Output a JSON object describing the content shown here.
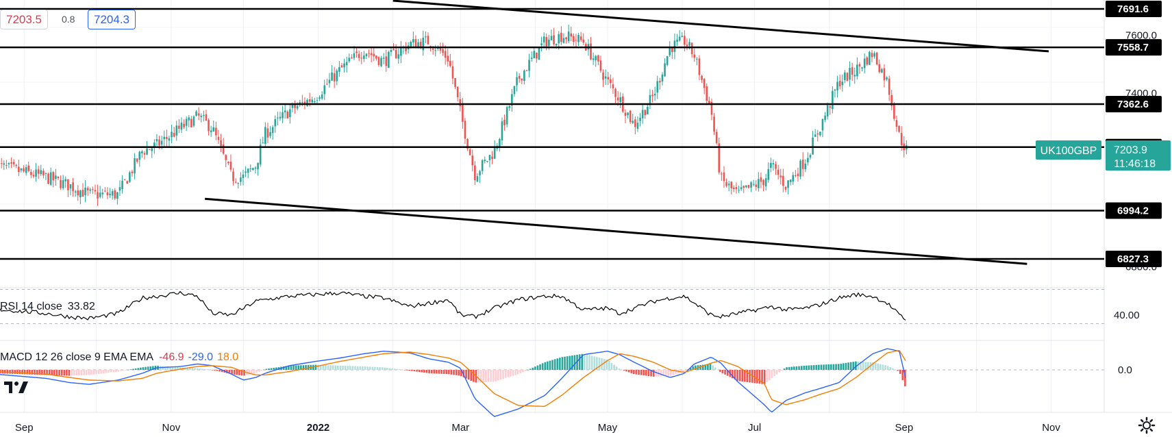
{
  "header": {
    "bid": "7203.5",
    "spread": "0.8",
    "ask": "7204.3",
    "bid_color": "#e0394b",
    "ask_color": "#2962ff"
  },
  "symbol_tag": {
    "label": "UK100GBP",
    "price": "7203.9",
    "countdown": "11:46:18",
    "color": "#26a69a"
  },
  "chart_data": [
    {
      "type": "line",
      "title": "",
      "x_ticks": [
        "Sep",
        "Nov",
        "2022",
        "Mar",
        "May",
        "Jul",
        "Sep",
        "Nov"
      ],
      "y_ticks": [
        "6800.0",
        "7200.0",
        "7400.0",
        "7600.0"
      ],
      "ylim": [
        6760,
        7720
      ],
      "grid": true,
      "levels": [
        "7691.6",
        "7558.7",
        "7362.6",
        "7213.9",
        "6994.2",
        "6827.3"
      ],
      "level_values": [
        7691.6,
        7558.7,
        7362.6,
        7213.9,
        6994.2,
        6827.3
      ],
      "trendlines": [
        {
          "name": "resistance",
          "from": [
            "2022-02-01",
            7720
          ],
          "to": [
            "2022-10-31",
            7545
          ]
        },
        {
          "name": "support",
          "from": [
            "2021-11-15",
            7035
          ],
          "to": [
            "2022-10-22",
            6810
          ]
        }
      ],
      "series": [
        {
          "kind": "close-path",
          "x": [
            "2021-08-20",
            "2021-09-10",
            "2021-09-20",
            "2021-09-28",
            "2021-10-10",
            "2021-10-20",
            "2021-10-26",
            "2021-11-05",
            "2021-11-12",
            "2021-11-18",
            "2021-11-26",
            "2021-12-01",
            "2021-12-06",
            "2021-12-10",
            "2021-12-20",
            "2021-12-31",
            "2022-01-10",
            "2022-01-20",
            "2022-01-28",
            "2022-02-08",
            "2022-02-16",
            "2022-02-24",
            "2022-03-01",
            "2022-03-07",
            "2022-03-15",
            "2022-03-25",
            "2022-04-05",
            "2022-04-12",
            "2022-04-21",
            "2022-05-01",
            "2022-05-06",
            "2022-05-12",
            "2022-05-20",
            "2022-05-27",
            "2022-06-02",
            "2022-06-06",
            "2022-06-13",
            "2022-06-17",
            "2022-06-24",
            "2022-07-05",
            "2022-07-08",
            "2022-07-14",
            "2022-07-22",
            "2022-07-28",
            "2022-08-05",
            "2022-08-12",
            "2022-08-19",
            "2022-08-25",
            "2022-08-30",
            "2022-09-02"
          ],
          "values": [
            7150,
            7110,
            7080,
            7050,
            7050,
            7200,
            7220,
            7280,
            7320,
            7280,
            7110,
            7110,
            7150,
            7260,
            7340,
            7390,
            7480,
            7550,
            7510,
            7570,
            7580,
            7520,
            7330,
            7120,
            7200,
            7450,
            7580,
            7600,
            7580,
            7440,
            7380,
            7290,
            7390,
            7560,
            7580,
            7530,
            7340,
            7100,
            7050,
            7100,
            7150,
            7080,
            7170,
            7280,
            7440,
            7480,
            7540,
            7440,
            7250,
            7204
          ]
        }
      ]
    },
    {
      "type": "line",
      "title": "RSI 14 close",
      "last_value": "33.82",
      "y_ticks": [
        "40.00"
      ],
      "ylim": [
        20,
        80
      ],
      "bands": [
        30,
        70
      ],
      "series": [
        {
          "name": "RSI",
          "values": [
            47,
            42,
            38,
            36,
            42,
            60,
            62,
            66,
            62,
            42,
            40,
            48,
            56,
            58,
            62,
            64,
            66,
            62,
            60,
            50,
            54,
            58,
            40,
            38,
            48,
            58,
            62,
            62,
            46,
            48,
            42,
            48,
            56,
            60,
            62,
            54,
            40,
            38,
            42,
            48,
            50,
            46,
            48,
            52,
            60,
            64,
            62,
            54,
            40,
            34
          ]
        }
      ]
    },
    {
      "type": "bar",
      "title": "MACD 12 26 close 9 EMA EMA",
      "values_text": [
        "-46.9",
        "-29.0",
        "18.0"
      ],
      "y_ticks": [
        "0.0"
      ],
      "ylim": [
        -110,
        70
      ],
      "series": [
        {
          "name": "MACD",
          "color": "#2962ff",
          "values": [
            -10,
            -20,
            -30,
            -34,
            -24,
            -8,
            5,
            8,
            14,
            10,
            -10,
            -24,
            -18,
            -8,
            10,
            20,
            28,
            38,
            44,
            40,
            26,
            18,
            4,
            -68,
            -110,
            -92,
            -60,
            -20,
            36,
            44,
            36,
            18,
            -4,
            -18,
            -8,
            14,
            30,
            16,
            -28,
            -82,
            -100,
            -72,
            -54,
            -44,
            -30,
            8,
            38,
            50,
            44,
            -29
          ]
        },
        {
          "name": "Signal",
          "color": "#f57c00",
          "values": [
            -4,
            -10,
            -18,
            -24,
            -26,
            -20,
            -8,
            2,
            8,
            10,
            6,
            -4,
            -12,
            -12,
            -4,
            8,
            20,
            30,
            38,
            42,
            36,
            28,
            18,
            -12,
            -56,
            -84,
            -86,
            -60,
            -18,
            22,
            38,
            32,
            18,
            0,
            -6,
            2,
            16,
            22,
            8,
            -32,
            -70,
            -82,
            -70,
            -58,
            -44,
            -18,
            14,
            40,
            46,
            18
          ]
        },
        {
          "name": "Histogram",
          "values": [
            -8,
            -12,
            -14,
            -12,
            -4,
            6,
            10,
            6,
            4,
            0,
            -10,
            -14,
            -8,
            2,
            10,
            12,
            10,
            8,
            6,
            -2,
            -8,
            -10,
            -14,
            -30,
            -28,
            -10,
            18,
            30,
            38,
            24,
            2,
            -10,
            -16,
            -14,
            -4,
            10,
            14,
            -6,
            -26,
            -34,
            -20,
            6,
            10,
            12,
            14,
            20,
            18,
            10,
            -4,
            -46.9
          ]
        }
      ]
    }
  ],
  "colors": {
    "up": "#26a69a",
    "down": "#ef5350",
    "rsi": "#000000",
    "macd": "#2962ff",
    "signal": "#f57c00",
    "hist_up": "#26a69a",
    "hist_down": "#ef5350",
    "level": "#000000"
  },
  "icons": {
    "logo": "tradingview-logo-icon",
    "settings": "gear-icon"
  }
}
